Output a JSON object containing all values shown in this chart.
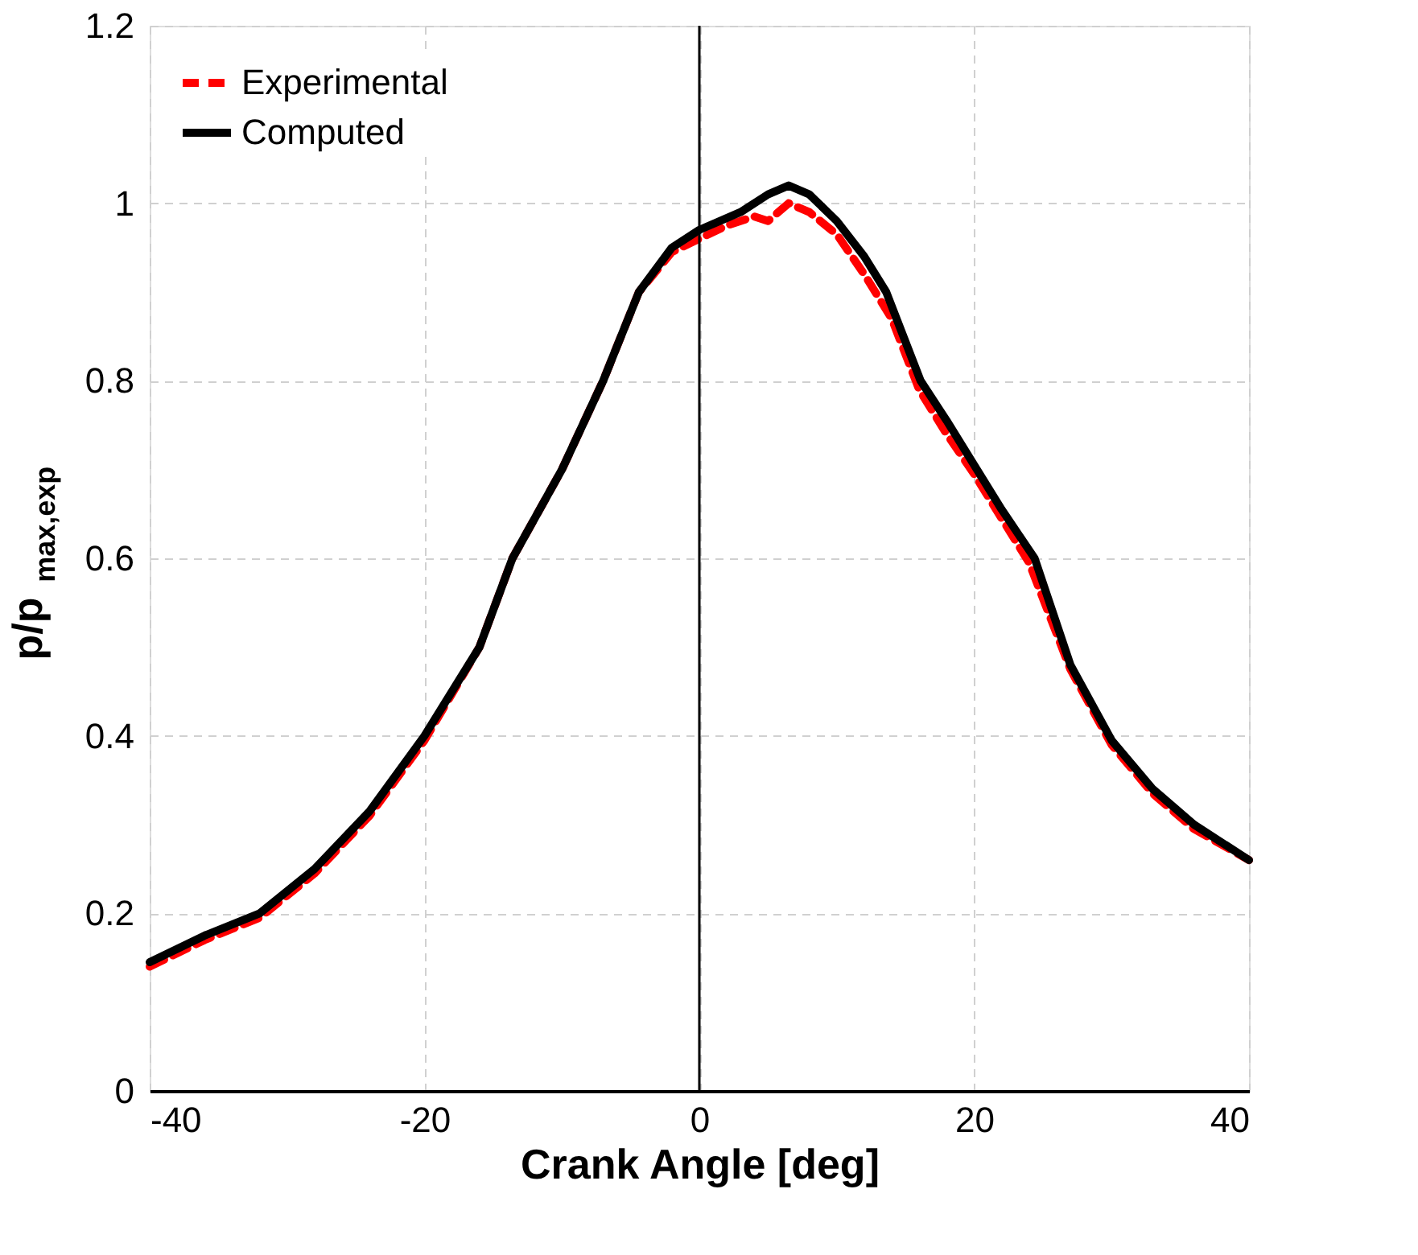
{
  "chart_data": {
    "type": "line",
    "xlabel": "Crank Angle [deg]",
    "ylabel": "p/p$_{max,exp}$",
    "xlim": [
      -40,
      40
    ],
    "xticks": [
      -40,
      -20,
      0,
      20,
      40
    ],
    "ylim": [
      0,
      1.2
    ],
    "yticks": [
      0,
      0.2,
      0.4,
      0.6,
      0.8,
      1,
      1.2
    ],
    "grid": true,
    "legend": "top left",
    "ref_lines": [
      {
        "axis": "x",
        "value": 0,
        "color": "#000000",
        "line_style": "solid"
      }
    ],
    "series": [
      {
        "name": "Experimental",
        "color": "#ff0000",
        "line_style": "dashed",
        "x": [
          -40,
          -36,
          -32,
          -28,
          -24,
          -20,
          -16,
          -13.6,
          -10,
          -7,
          -4.4,
          -2,
          0,
          2,
          4,
          5,
          6.5,
          8,
          10,
          12,
          14,
          16,
          18,
          20,
          22,
          24,
          27,
          30,
          33,
          36,
          40
        ],
        "values": [
          0.14,
          0.17,
          0.195,
          0.245,
          0.31,
          0.395,
          0.5,
          0.6,
          0.7,
          0.8,
          0.9,
          0.945,
          0.96,
          0.975,
          0.985,
          0.98,
          1.0,
          0.99,
          0.965,
          0.92,
          0.87,
          0.79,
          0.74,
          0.695,
          0.645,
          0.595,
          0.475,
          0.39,
          0.335,
          0.295,
          0.26
        ]
      },
      {
        "name": "Computed",
        "color": "#000000",
        "line_style": "solid",
        "x": [
          -40,
          -36,
          -32,
          -28,
          -24,
          -20,
          -16,
          -13.6,
          -10,
          -7,
          -4.4,
          -2,
          0,
          3,
          5,
          6.5,
          8,
          10,
          12,
          13.6,
          16.1,
          18,
          20,
          22,
          24.4,
          27,
          30,
          33,
          36,
          40
        ],
        "values": [
          0.145,
          0.175,
          0.2,
          0.25,
          0.315,
          0.4,
          0.5,
          0.6,
          0.7,
          0.8,
          0.9,
          0.95,
          0.97,
          0.99,
          1.01,
          1.02,
          1.01,
          0.98,
          0.94,
          0.9,
          0.8,
          0.755,
          0.705,
          0.655,
          0.6,
          0.48,
          0.395,
          0.34,
          0.3,
          0.26
        ]
      }
    ]
  }
}
